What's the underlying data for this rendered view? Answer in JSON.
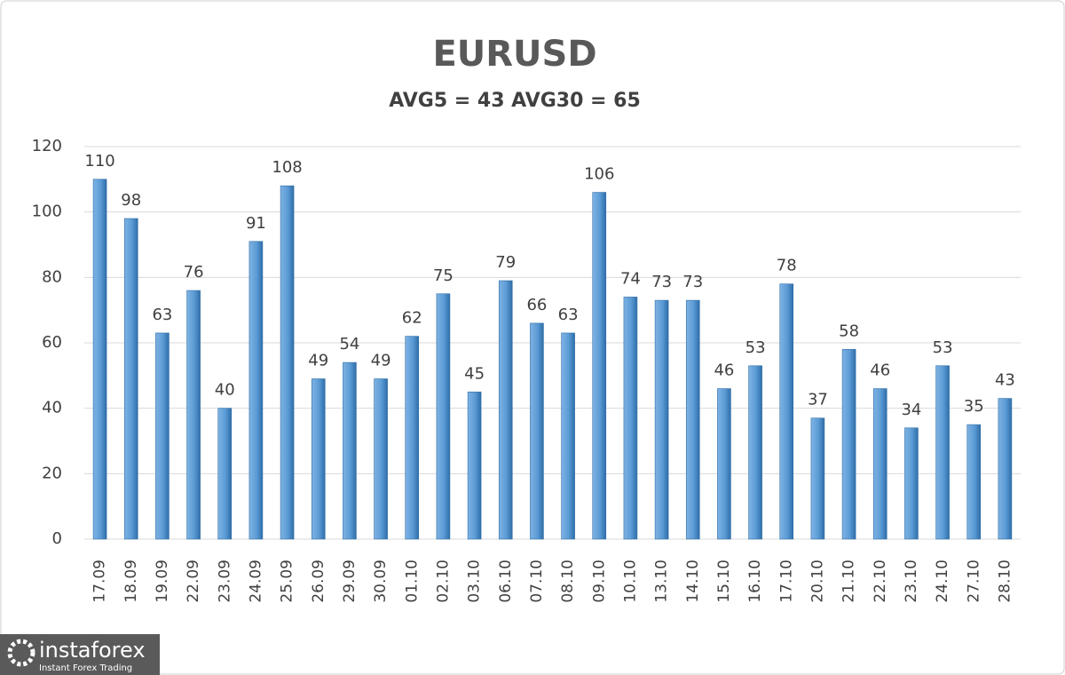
{
  "chart_data": {
    "type": "bar",
    "title": "EURUSD",
    "subtitle": "AVG5 = 43 AVG30 = 65",
    "categories": [
      "17.09",
      "18.09",
      "19.09",
      "22.09",
      "23.09",
      "24.09",
      "25.09",
      "26.09",
      "29.09",
      "30.09",
      "01.10",
      "02.10",
      "03.10",
      "06.10",
      "07.10",
      "08.10",
      "09.10",
      "10.10",
      "13.10",
      "14.10",
      "15.10",
      "16.10",
      "17.10",
      "20.10",
      "21.10",
      "22.10",
      "23.10",
      "24.10",
      "27.10",
      "28.10"
    ],
    "values": [
      110,
      98,
      63,
      76,
      40,
      91,
      108,
      49,
      54,
      49,
      62,
      75,
      45,
      79,
      66,
      63,
      106,
      74,
      73,
      73,
      46,
      53,
      78,
      37,
      58,
      46,
      34,
      53,
      35,
      43
    ],
    "color": "#5b9bd5",
    "ylim": [
      0,
      120
    ],
    "yticks": [
      0,
      20,
      40,
      60,
      80,
      100,
      120
    ],
    "grid": true
  },
  "logo": {
    "brand": "instaforex",
    "tagline": "Instant Forex Trading"
  }
}
